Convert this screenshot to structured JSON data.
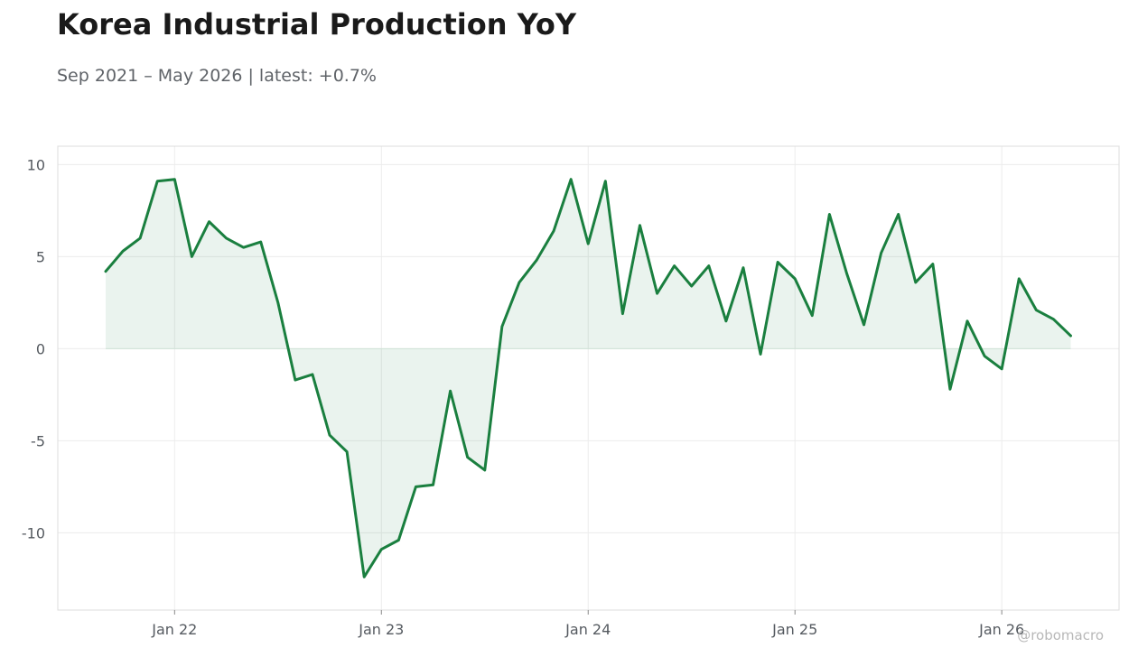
{
  "title": "Korea Industrial Production YoY",
  "subtitle": "Sep 2021 – May 2026 | latest: +0.7%",
  "watermark": "@robomacro",
  "colors": {
    "line": "#1a7f3f",
    "fill": "#1a7f3f",
    "grid": "#ececec",
    "axis": "#dddddd",
    "zero": "#cfe3d6"
  },
  "chart_data": {
    "type": "area",
    "x_start": "2021-09",
    "x_end": "2026-05",
    "x_tick_labels": [
      "Jan 22",
      "Jan 23",
      "Jan 24",
      "Jan 25",
      "Jan 26"
    ],
    "y_ticks": [
      10,
      5,
      0,
      -5,
      -10
    ],
    "ylim": [
      -14.2,
      11
    ],
    "grid": true,
    "series": [
      {
        "values": [
          4.2,
          5.3,
          6.0,
          9.1,
          9.2,
          5.0,
          6.9,
          6.0,
          5.5,
          5.8,
          2.5,
          -1.7,
          -1.4,
          -4.7,
          -5.6,
          -12.4,
          -10.9,
          -10.4,
          -7.5,
          -7.4,
          -2.3,
          -5.9,
          -6.6,
          1.2,
          3.6,
          4.8,
          6.4,
          9.2,
          5.7,
          9.1,
          1.9,
          6.7,
          3.0,
          4.5,
          3.4,
          4.5,
          1.5,
          4.4,
          -0.3,
          4.7,
          3.8,
          1.8,
          7.3,
          4.1,
          1.3,
          5.2,
          7.3,
          3.6,
          4.6,
          -2.2,
          1.5,
          -0.4,
          -1.1,
          3.8,
          2.1,
          1.6,
          0.7
        ]
      }
    ]
  }
}
